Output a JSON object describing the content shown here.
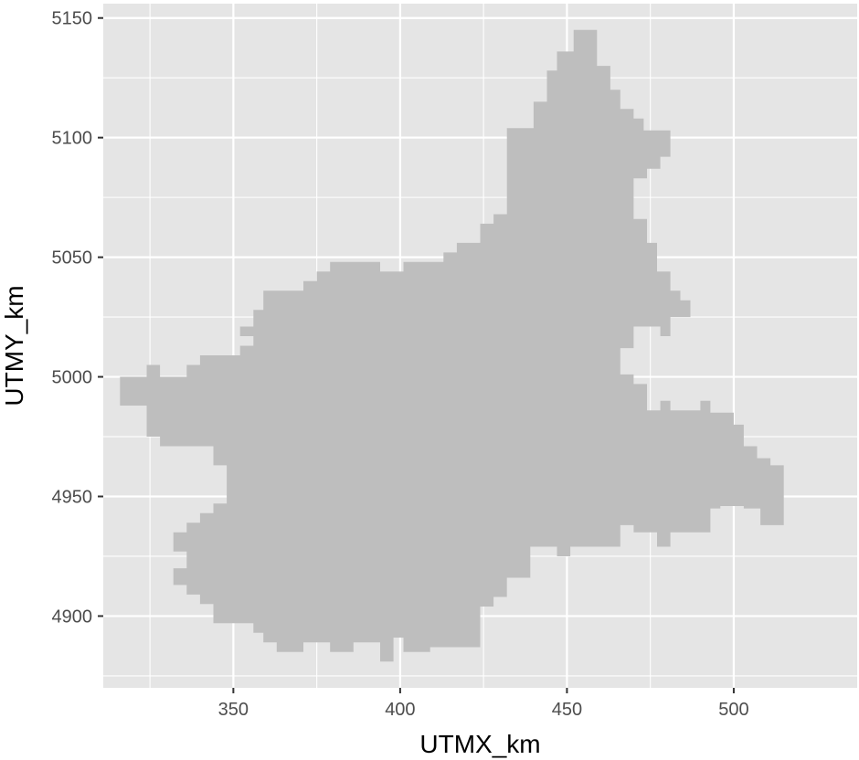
{
  "chart_data": {
    "type": "map",
    "title": "",
    "xlabel": "UTMX_km",
    "ylabel": "UTMY_km",
    "xlim": [
      311,
      537
    ],
    "ylim": [
      4870,
      5156
    ],
    "x_ticks": [
      350,
      400,
      450,
      500
    ],
    "y_ticks": [
      4900,
      4950,
      5000,
      5050,
      5100,
      5150
    ],
    "x_minor": [
      325,
      375,
      425,
      475
    ],
    "y_minor": [
      4875,
      4925,
      4975,
      5025,
      5075,
      5125
    ],
    "grid": true,
    "panel_background": "#e5e5e5",
    "grid_color": "#ffffff",
    "region_fill": "#bebebe",
    "region_outline_km": [
      [
        316,
        4988
      ],
      [
        316,
        5000
      ],
      [
        324,
        5000
      ],
      [
        324,
        5005
      ],
      [
        328,
        5005
      ],
      [
        328,
        5000
      ],
      [
        336,
        5000
      ],
      [
        336,
        5005
      ],
      [
        340,
        5005
      ],
      [
        340,
        5009
      ],
      [
        352,
        5009
      ],
      [
        352,
        5013
      ],
      [
        356,
        5013
      ],
      [
        356,
        5017
      ],
      [
        352,
        5017
      ],
      [
        352,
        5021
      ],
      [
        356,
        5021
      ],
      [
        356,
        5028
      ],
      [
        359,
        5028
      ],
      [
        359,
        5036
      ],
      [
        371,
        5036
      ],
      [
        371,
        5040
      ],
      [
        375,
        5040
      ],
      [
        375,
        5044
      ],
      [
        379,
        5044
      ],
      [
        379,
        5048
      ],
      [
        394,
        5048
      ],
      [
        394,
        5044
      ],
      [
        401,
        5044
      ],
      [
        401,
        5048
      ],
      [
        413,
        5048
      ],
      [
        413,
        5052
      ],
      [
        417,
        5052
      ],
      [
        417,
        5056
      ],
      [
        424,
        5056
      ],
      [
        424,
        5064
      ],
      [
        428,
        5064
      ],
      [
        428,
        5068
      ],
      [
        432,
        5068
      ],
      [
        432,
        5104
      ],
      [
        440,
        5104
      ],
      [
        440,
        5115
      ],
      [
        444,
        5115
      ],
      [
        444,
        5128
      ],
      [
        447,
        5128
      ],
      [
        447,
        5136
      ],
      [
        452,
        5136
      ],
      [
        452,
        5145
      ],
      [
        459,
        5145
      ],
      [
        459,
        5130
      ],
      [
        463,
        5130
      ],
      [
        463,
        5120
      ],
      [
        466,
        5120
      ],
      [
        466,
        5112
      ],
      [
        470,
        5112
      ],
      [
        470,
        5108
      ],
      [
        473,
        5108
      ],
      [
        473,
        5103
      ],
      [
        481,
        5103
      ],
      [
        481,
        5092
      ],
      [
        478,
        5092
      ],
      [
        478,
        5087
      ],
      [
        474,
        5087
      ],
      [
        474,
        5083
      ],
      [
        470,
        5083
      ],
      [
        470,
        5066
      ],
      [
        474,
        5066
      ],
      [
        474,
        5056
      ],
      [
        477,
        5056
      ],
      [
        477,
        5044
      ],
      [
        481,
        5044
      ],
      [
        481,
        5036
      ],
      [
        484,
        5036
      ],
      [
        484,
        5032
      ],
      [
        487,
        5032
      ],
      [
        487,
        5025
      ],
      [
        481,
        5025
      ],
      [
        481,
        5017
      ],
      [
        478,
        5017
      ],
      [
        478,
        5021
      ],
      [
        470,
        5021
      ],
      [
        470,
        5012
      ],
      [
        466,
        5012
      ],
      [
        466,
        5001
      ],
      [
        470,
        5001
      ],
      [
        470,
        4997
      ],
      [
        474,
        4997
      ],
      [
        474,
        4986
      ],
      [
        478,
        4986
      ],
      [
        478,
        4990
      ],
      [
        481,
        4990
      ],
      [
        481,
        4986
      ],
      [
        490,
        4986
      ],
      [
        490,
        4990
      ],
      [
        493,
        4990
      ],
      [
        493,
        4985
      ],
      [
        500,
        4985
      ],
      [
        500,
        4980
      ],
      [
        503,
        4980
      ],
      [
        503,
        4971
      ],
      [
        507,
        4971
      ],
      [
        507,
        4966
      ],
      [
        511,
        4966
      ],
      [
        511,
        4963
      ],
      [
        515,
        4963
      ],
      [
        515,
        4938
      ],
      [
        508,
        4938
      ],
      [
        508,
        4945
      ],
      [
        503,
        4945
      ],
      [
        503,
        4946
      ],
      [
        496,
        4946
      ],
      [
        496,
        4945
      ],
      [
        493,
        4945
      ],
      [
        493,
        4935
      ],
      [
        485,
        4935
      ],
      [
        485,
        4935
      ],
      [
        481,
        4935
      ],
      [
        481,
        4929
      ],
      [
        477,
        4929
      ],
      [
        477,
        4935
      ],
      [
        470,
        4935
      ],
      [
        470,
        4938
      ],
      [
        466,
        4938
      ],
      [
        466,
        4929
      ],
      [
        455,
        4929
      ],
      [
        455,
        4929
      ],
      [
        451,
        4929
      ],
      [
        451,
        4925
      ],
      [
        447,
        4925
      ],
      [
        447,
        4929
      ],
      [
        439,
        4929
      ],
      [
        439,
        4916
      ],
      [
        432,
        4916
      ],
      [
        432,
        4908
      ],
      [
        428,
        4908
      ],
      [
        428,
        4904
      ],
      [
        424,
        4904
      ],
      [
        424,
        4887
      ],
      [
        409,
        4887
      ],
      [
        409,
        4885
      ],
      [
        401,
        4885
      ],
      [
        401,
        4891
      ],
      [
        398,
        4891
      ],
      [
        398,
        4881
      ],
      [
        394,
        4881
      ],
      [
        394,
        4889
      ],
      [
        386,
        4889
      ],
      [
        386,
        4885
      ],
      [
        379,
        4885
      ],
      [
        379,
        4889
      ],
      [
        371,
        4889
      ],
      [
        371,
        4885
      ],
      [
        363,
        4885
      ],
      [
        363,
        4889
      ],
      [
        359,
        4889
      ],
      [
        359,
        4893
      ],
      [
        356,
        4893
      ],
      [
        356,
        4897
      ],
      [
        344,
        4897
      ],
      [
        344,
        4905
      ],
      [
        340,
        4905
      ],
      [
        340,
        4909
      ],
      [
        336,
        4909
      ],
      [
        336,
        4913
      ],
      [
        332,
        4913
      ],
      [
        332,
        4920
      ],
      [
        336,
        4920
      ],
      [
        336,
        4927
      ],
      [
        332,
        4927
      ],
      [
        332,
        4935
      ],
      [
        336,
        4935
      ],
      [
        336,
        4939
      ],
      [
        340,
        4939
      ],
      [
        340,
        4943
      ],
      [
        344,
        4943
      ],
      [
        344,
        4947
      ],
      [
        348,
        4947
      ],
      [
        348,
        4963
      ],
      [
        344,
        4963
      ],
      [
        344,
        4971
      ],
      [
        328,
        4971
      ],
      [
        328,
        4975
      ],
      [
        324,
        4975
      ],
      [
        324,
        4988
      ]
    ]
  }
}
